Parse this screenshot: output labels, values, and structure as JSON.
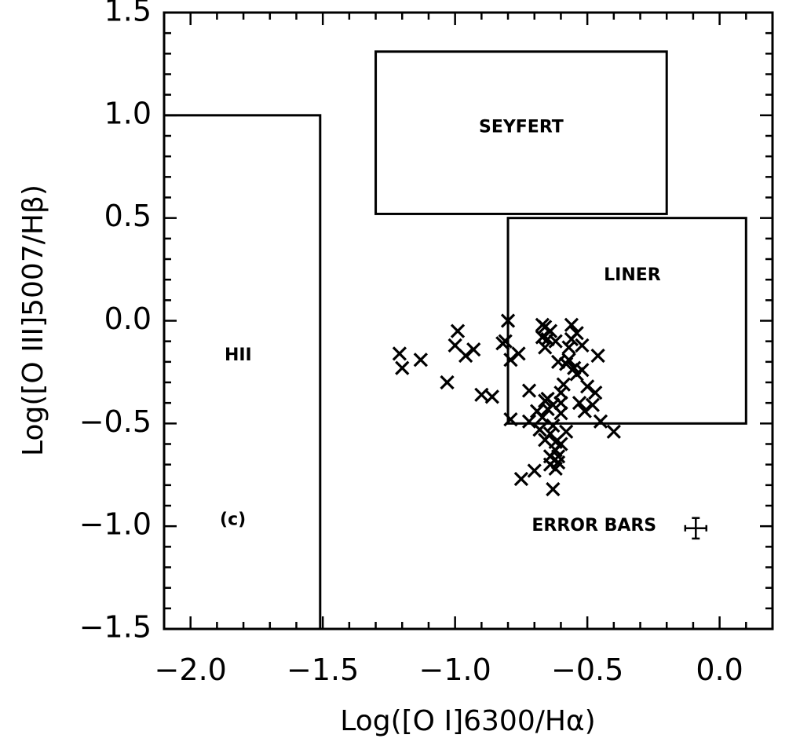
{
  "chart_data": {
    "type": "scatter",
    "xlabel": "Log([O I]6300/Hα)",
    "ylabel": "Log([O III]5007/Hβ)",
    "xlim": [
      -2.1,
      0.2
    ],
    "ylim": [
      -1.5,
      1.5
    ],
    "xticks": [
      "-2.0",
      "-1.5",
      "-1.0",
      "-0.5",
      "0.0"
    ],
    "xtick_values": [
      -2.0,
      -1.5,
      -1.0,
      -0.5,
      0.0
    ],
    "yticks": [
      "1.5",
      "1.0",
      "0.5",
      "0.0",
      "-0.5",
      "-1.0",
      "-1.5"
    ],
    "ytick_values": [
      1.5,
      1.0,
      0.5,
      0.0,
      -0.5,
      -1.0,
      -1.5
    ],
    "grid": false,
    "marker": "x",
    "points": [
      [
        -1.21,
        -0.16
      ],
      [
        -1.2,
        -0.23
      ],
      [
        -1.13,
        -0.19
      ],
      [
        -1.03,
        -0.3
      ],
      [
        -0.99,
        -0.05
      ],
      [
        -1.0,
        -0.12
      ],
      [
        -0.96,
        -0.17
      ],
      [
        -0.93,
        -0.14
      ],
      [
        -0.9,
        -0.36
      ],
      [
        -0.86,
        -0.37
      ],
      [
        -0.82,
        -0.11
      ],
      [
        -0.81,
        -0.1
      ],
      [
        -0.8,
        0.0
      ],
      [
        -0.79,
        -0.19
      ],
      [
        -0.79,
        -0.48
      ],
      [
        -0.76,
        -0.16
      ],
      [
        -0.72,
        -0.34
      ],
      [
        -0.72,
        -0.49
      ],
      [
        -0.69,
        -0.44
      ],
      [
        -0.68,
        -0.53
      ],
      [
        -0.67,
        -0.02
      ],
      [
        -0.67,
        -0.08
      ],
      [
        -0.66,
        -0.03
      ],
      [
        -0.66,
        -0.13
      ],
      [
        -0.65,
        -0.09
      ],
      [
        -0.64,
        -0.05
      ],
      [
        -0.65,
        -0.38
      ],
      [
        -0.64,
        -0.55
      ],
      [
        -0.63,
        -0.41
      ],
      [
        -0.63,
        -0.51
      ],
      [
        -0.62,
        -0.59
      ],
      [
        -0.62,
        -0.63
      ],
      [
        -0.61,
        -0.66
      ],
      [
        -0.61,
        -0.69
      ],
      [
        -0.62,
        -0.72
      ],
      [
        -0.6,
        -0.35
      ],
      [
        -0.6,
        -0.4
      ],
      [
        -0.6,
        -0.45
      ],
      [
        -0.6,
        -0.6
      ],
      [
        -0.59,
        -0.31
      ],
      [
        -0.58,
        -0.21
      ],
      [
        -0.58,
        -0.54
      ],
      [
        -0.57,
        -0.13
      ],
      [
        -0.57,
        -0.19
      ],
      [
        -0.56,
        -0.02
      ],
      [
        -0.56,
        -0.09
      ],
      [
        -0.55,
        -0.23
      ],
      [
        -0.54,
        -0.06
      ],
      [
        -0.54,
        -0.26
      ],
      [
        -0.53,
        -0.4
      ],
      [
        -0.52,
        -0.12
      ],
      [
        -0.52,
        -0.24
      ],
      [
        -0.51,
        -0.44
      ],
      [
        -0.5,
        -0.32
      ],
      [
        -0.48,
        -0.41
      ],
      [
        -0.47,
        -0.35
      ],
      [
        -0.46,
        -0.17
      ],
      [
        -0.45,
        -0.49
      ],
      [
        -0.4,
        -0.54
      ],
      [
        -0.66,
        -0.39
      ],
      [
        -0.65,
        -0.43
      ],
      [
        -0.67,
        -0.47
      ],
      [
        -0.66,
        -0.58
      ],
      [
        -0.64,
        -0.66
      ],
      [
        -0.64,
        -0.7
      ],
      [
        -0.75,
        -0.77
      ],
      [
        -0.7,
        -0.73
      ],
      [
        -0.63,
        -0.82
      ],
      [
        -0.62,
        -0.1
      ],
      [
        -0.61,
        -0.2
      ]
    ],
    "regions": [
      {
        "label": "HII",
        "x0": -2.1,
        "x1": -1.51,
        "y0": -1.5,
        "y1": 1.0,
        "label_x": -1.82,
        "label_y": -0.17
      },
      {
        "label": "SEYFERT",
        "x0": -1.3,
        "x1": -0.2,
        "y0": 0.52,
        "y1": 1.31,
        "label_x": -0.75,
        "label_y": 0.94
      },
      {
        "label": "LINER",
        "x0": -0.8,
        "x1": 0.1,
        "y0": -0.5,
        "y1": 0.5,
        "label_x": -0.33,
        "label_y": 0.22
      }
    ],
    "annotations": [
      {
        "text": "(c)",
        "x": -1.84,
        "y": -0.97
      },
      {
        "text": "ERROR BARS",
        "x": -0.71,
        "y": -1.0
      }
    ],
    "error_bar": {
      "x": -0.09,
      "y": -1.01,
      "xerr": 0.04,
      "yerr": 0.05
    }
  }
}
